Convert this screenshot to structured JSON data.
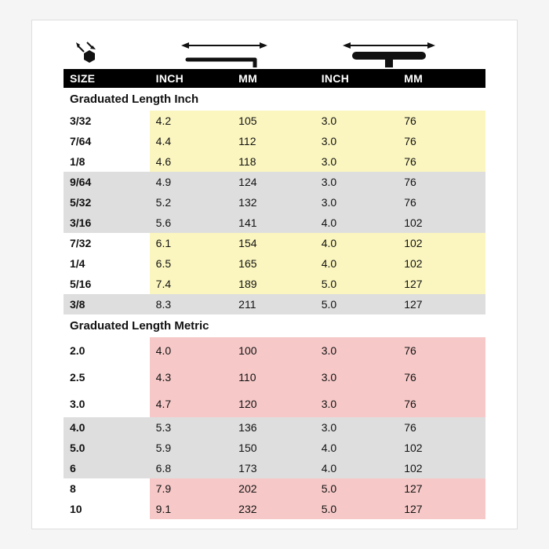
{
  "headers": {
    "size": "SIZE",
    "inch1": "INCH",
    "mm1": "MM",
    "inch2": "INCH",
    "mm2": "MM"
  },
  "sections": [
    {
      "title": "Graduated Length Inch",
      "rows": [
        {
          "size": "3/32",
          "inch1": "4.2",
          "mm1": "105",
          "inch2": "3.0",
          "mm2": "76",
          "band": "yellow"
        },
        {
          "size": "7/64",
          "inch1": "4.4",
          "mm1": "112",
          "inch2": "3.0",
          "mm2": "76",
          "band": "yellow"
        },
        {
          "size": "1/8",
          "inch1": "4.6",
          "mm1": "118",
          "inch2": "3.0",
          "mm2": "76",
          "band": "yellow"
        },
        {
          "size": "9/64",
          "inch1": "4.9",
          "mm1": "124",
          "inch2": "3.0",
          "mm2": "76",
          "band": "gray"
        },
        {
          "size": "5/32",
          "inch1": "5.2",
          "mm1": "132",
          "inch2": "3.0",
          "mm2": "76",
          "band": "gray"
        },
        {
          "size": "3/16",
          "inch1": "5.6",
          "mm1": "141",
          "inch2": "4.0",
          "mm2": "102",
          "band": "gray"
        },
        {
          "size": "7/32",
          "inch1": "6.1",
          "mm1": "154",
          "inch2": "4.0",
          "mm2": "102",
          "band": "yellow"
        },
        {
          "size": "1/4",
          "inch1": "6.5",
          "mm1": "165",
          "inch2": "4.0",
          "mm2": "102",
          "band": "yellow"
        },
        {
          "size": "5/16",
          "inch1": "7.4",
          "mm1": "189",
          "inch2": "5.0",
          "mm2": "127",
          "band": "yellow"
        },
        {
          "size": "3/8",
          "inch1": "8.3",
          "mm1": "211",
          "inch2": "5.0",
          "mm2": "127",
          "band": "gray"
        }
      ]
    },
    {
      "title": "Graduated Length Metric",
      "rows": [
        {
          "size": "2.0",
          "inch1": "4.0",
          "mm1": "100",
          "inch2": "3.0",
          "mm2": "76",
          "band": "pink",
          "spaced": true
        },
        {
          "size": "2.5",
          "inch1": "4.3",
          "mm1": "110",
          "inch2": "3.0",
          "mm2": "76",
          "band": "pink",
          "spaced": true
        },
        {
          "size": "3.0",
          "inch1": "4.7",
          "mm1": "120",
          "inch2": "3.0",
          "mm2": "76",
          "band": "pink",
          "spaced": true
        },
        {
          "size": "4.0",
          "inch1": "5.3",
          "mm1": "136",
          "inch2": "3.0",
          "mm2": "76",
          "band": "gray"
        },
        {
          "size": "5.0",
          "inch1": "5.9",
          "mm1": "150",
          "inch2": "4.0",
          "mm2": "102",
          "band": "gray"
        },
        {
          "size": "6",
          "inch1": "6.8",
          "mm1": "173",
          "inch2": "4.0",
          "mm2": "102",
          "band": "gray"
        },
        {
          "size": "8",
          "inch1": "7.9",
          "mm1": "202",
          "inch2": "5.0",
          "mm2": "127",
          "band": "pink"
        },
        {
          "size": "10",
          "inch1": "9.1",
          "mm1": "232",
          "inch2": "5.0",
          "mm2": "127",
          "band": "pink"
        }
      ]
    }
  ],
  "colors": {
    "yellow": "#fbf6bf",
    "gray": "#dedede",
    "pink": "#f6c9c8",
    "header_bg": "#000000",
    "header_fg": "#ffffff"
  }
}
